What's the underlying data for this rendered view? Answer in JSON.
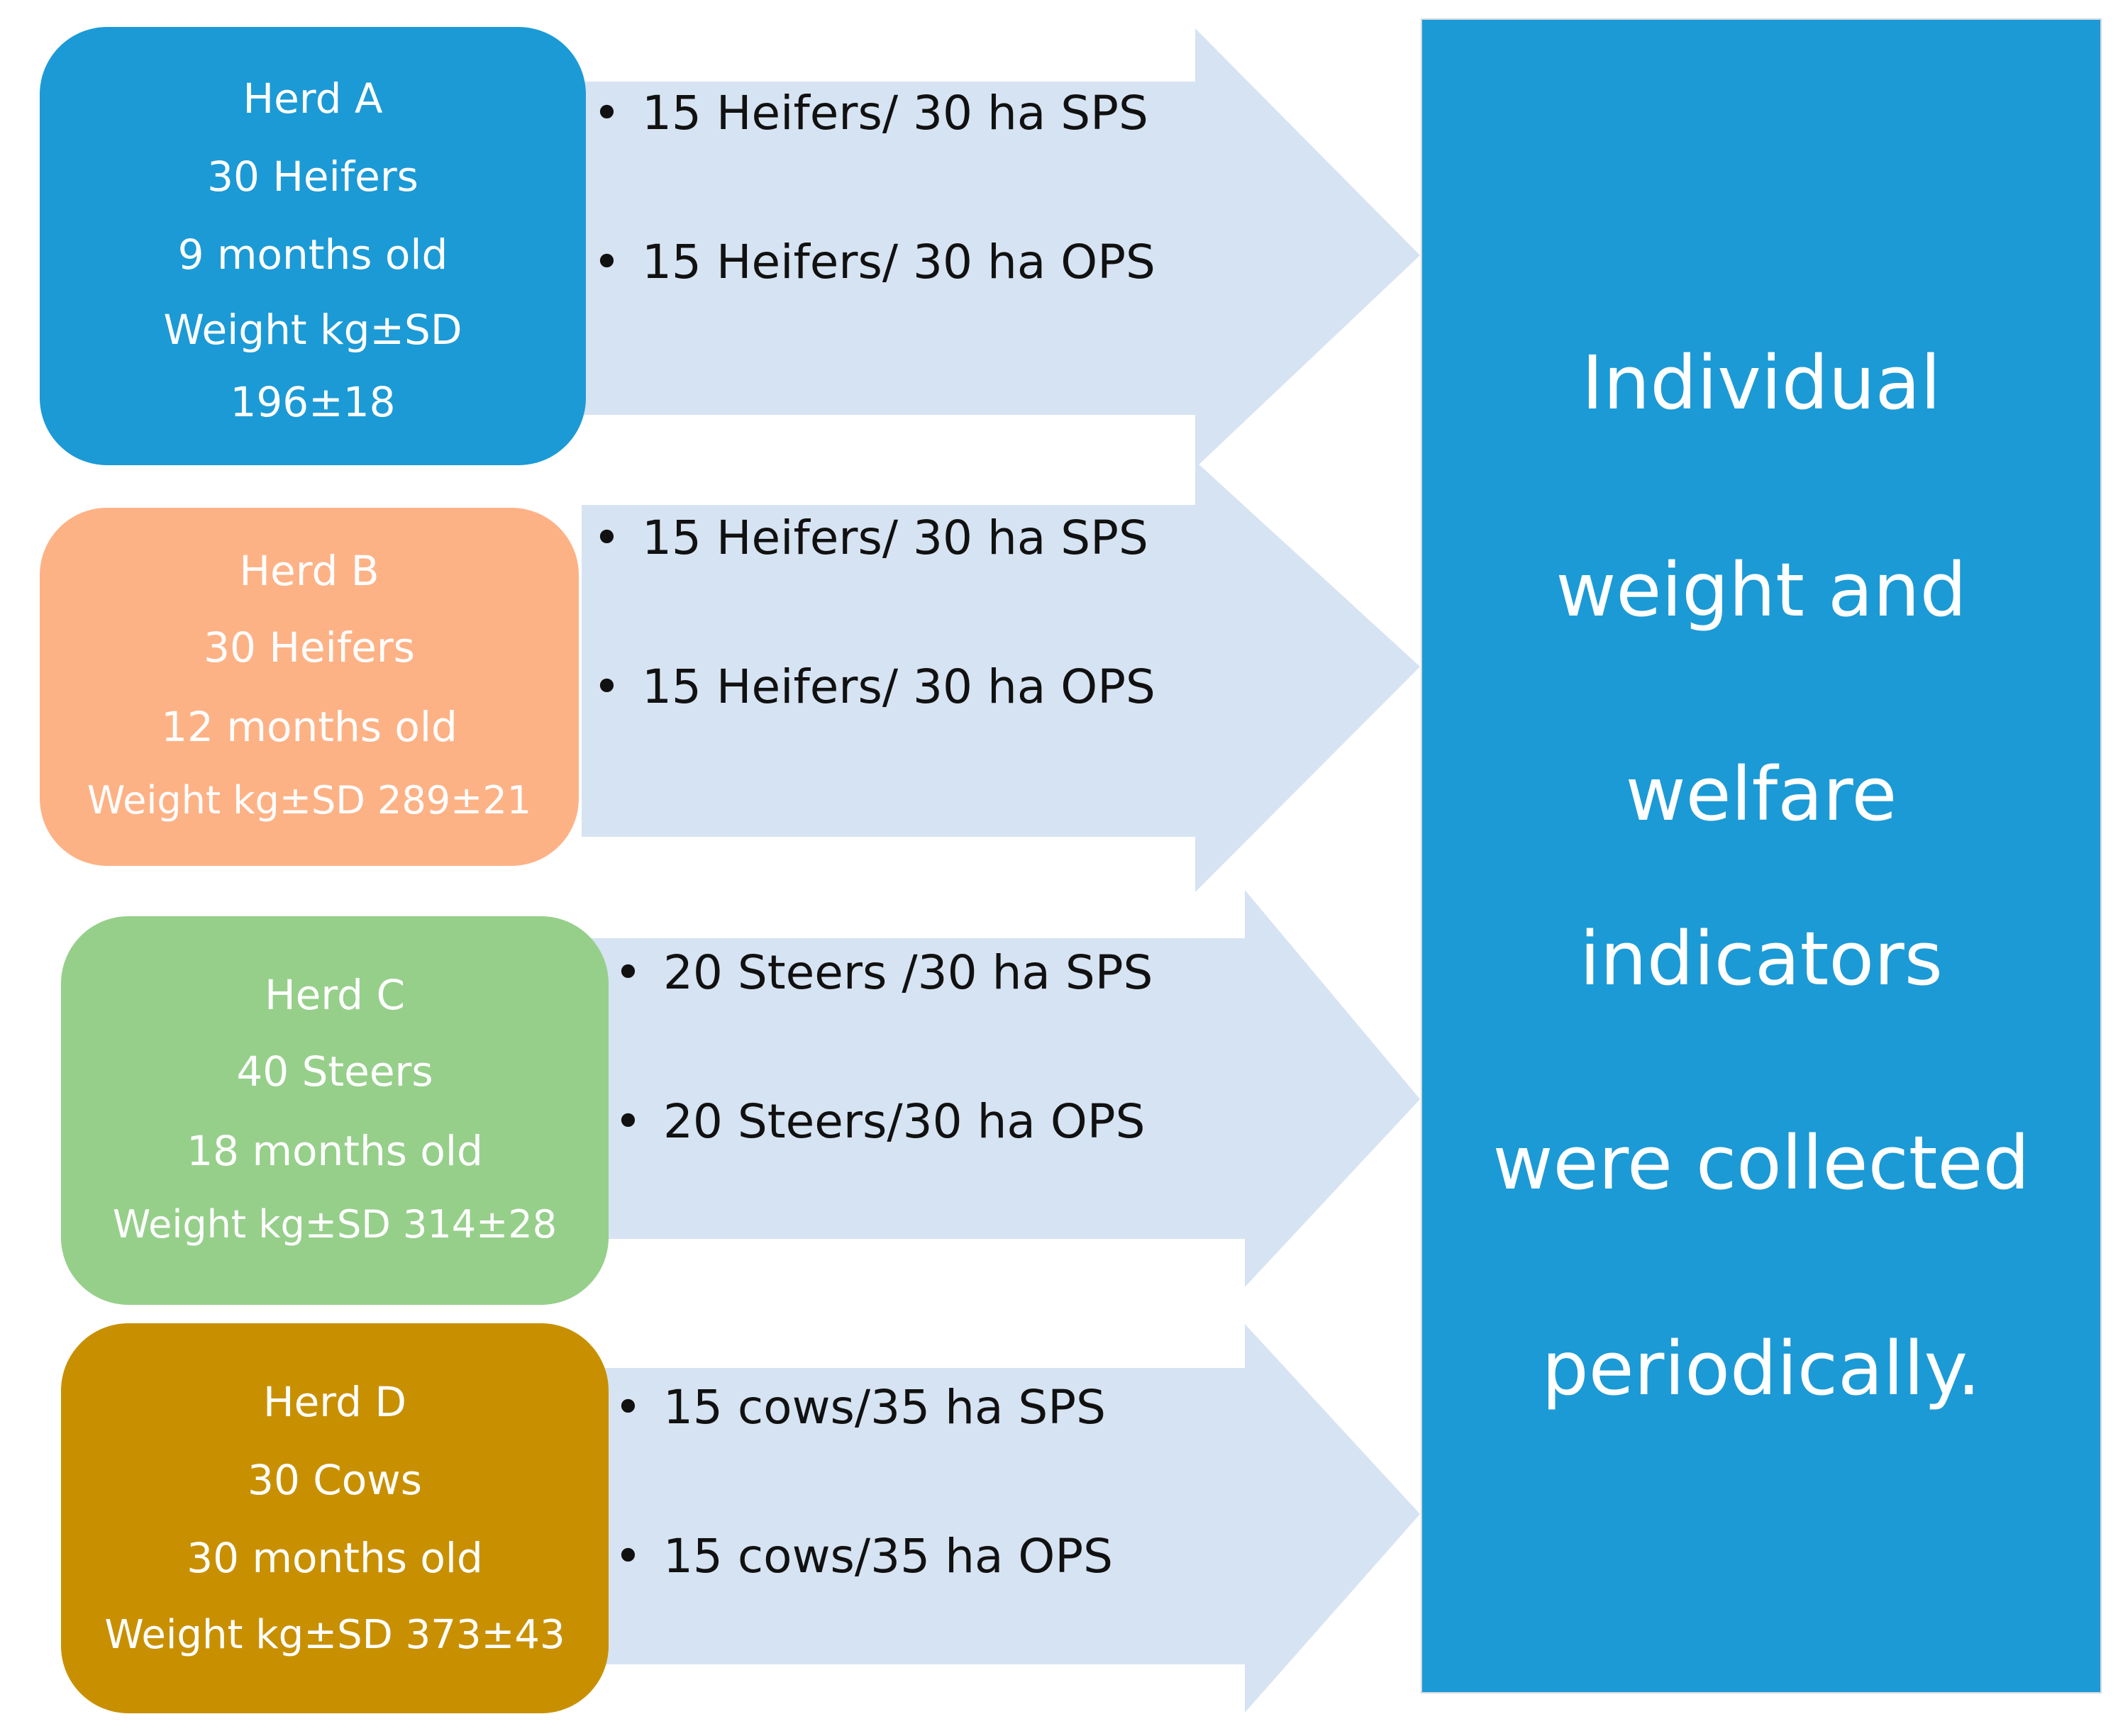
{
  "colors": {
    "arrow": "#d6e3f2",
    "herd_a": "#1b9ad6",
    "herd_b": "#fdb286",
    "herd_c": "#96cf8a",
    "herd_d": "#c89000",
    "summary": "#1b9ad6"
  },
  "herds": [
    {
      "lines": [
        "Herd A",
        "30 Heifers",
        "9 months old",
        "Weight kg±SD",
        "196±18"
      ],
      "bullets": [
        "15 Heifers/ 30 ha SPS",
        "15 Heifers/ 30 ha OPS"
      ]
    },
    {
      "lines": [
        "Herd B",
        "30 Heifers",
        "12 months old",
        "Weight kg±SD 289±21"
      ],
      "bullets": [
        "15 Heifers/ 30 ha SPS",
        "15 Heifers/ 30 ha OPS"
      ]
    },
    {
      "lines": [
        "Herd C",
        "40 Steers",
        "18 months old",
        "Weight kg±SD 314±28"
      ],
      "bullets": [
        "20 Steers /30 ha SPS",
        "20 Steers/30 ha OPS"
      ]
    },
    {
      "lines": [
        "Herd D",
        "30 Cows",
        "30 months old",
        "Weight kg±SD 373±43"
      ],
      "bullets": [
        "15 cows/35 ha SPS",
        "15 cows/35 ha OPS"
      ]
    }
  ],
  "summary": {
    "lines": [
      "Individual",
      "weight and",
      "welfare",
      "indicators",
      "were collected",
      "periodically."
    ]
  }
}
